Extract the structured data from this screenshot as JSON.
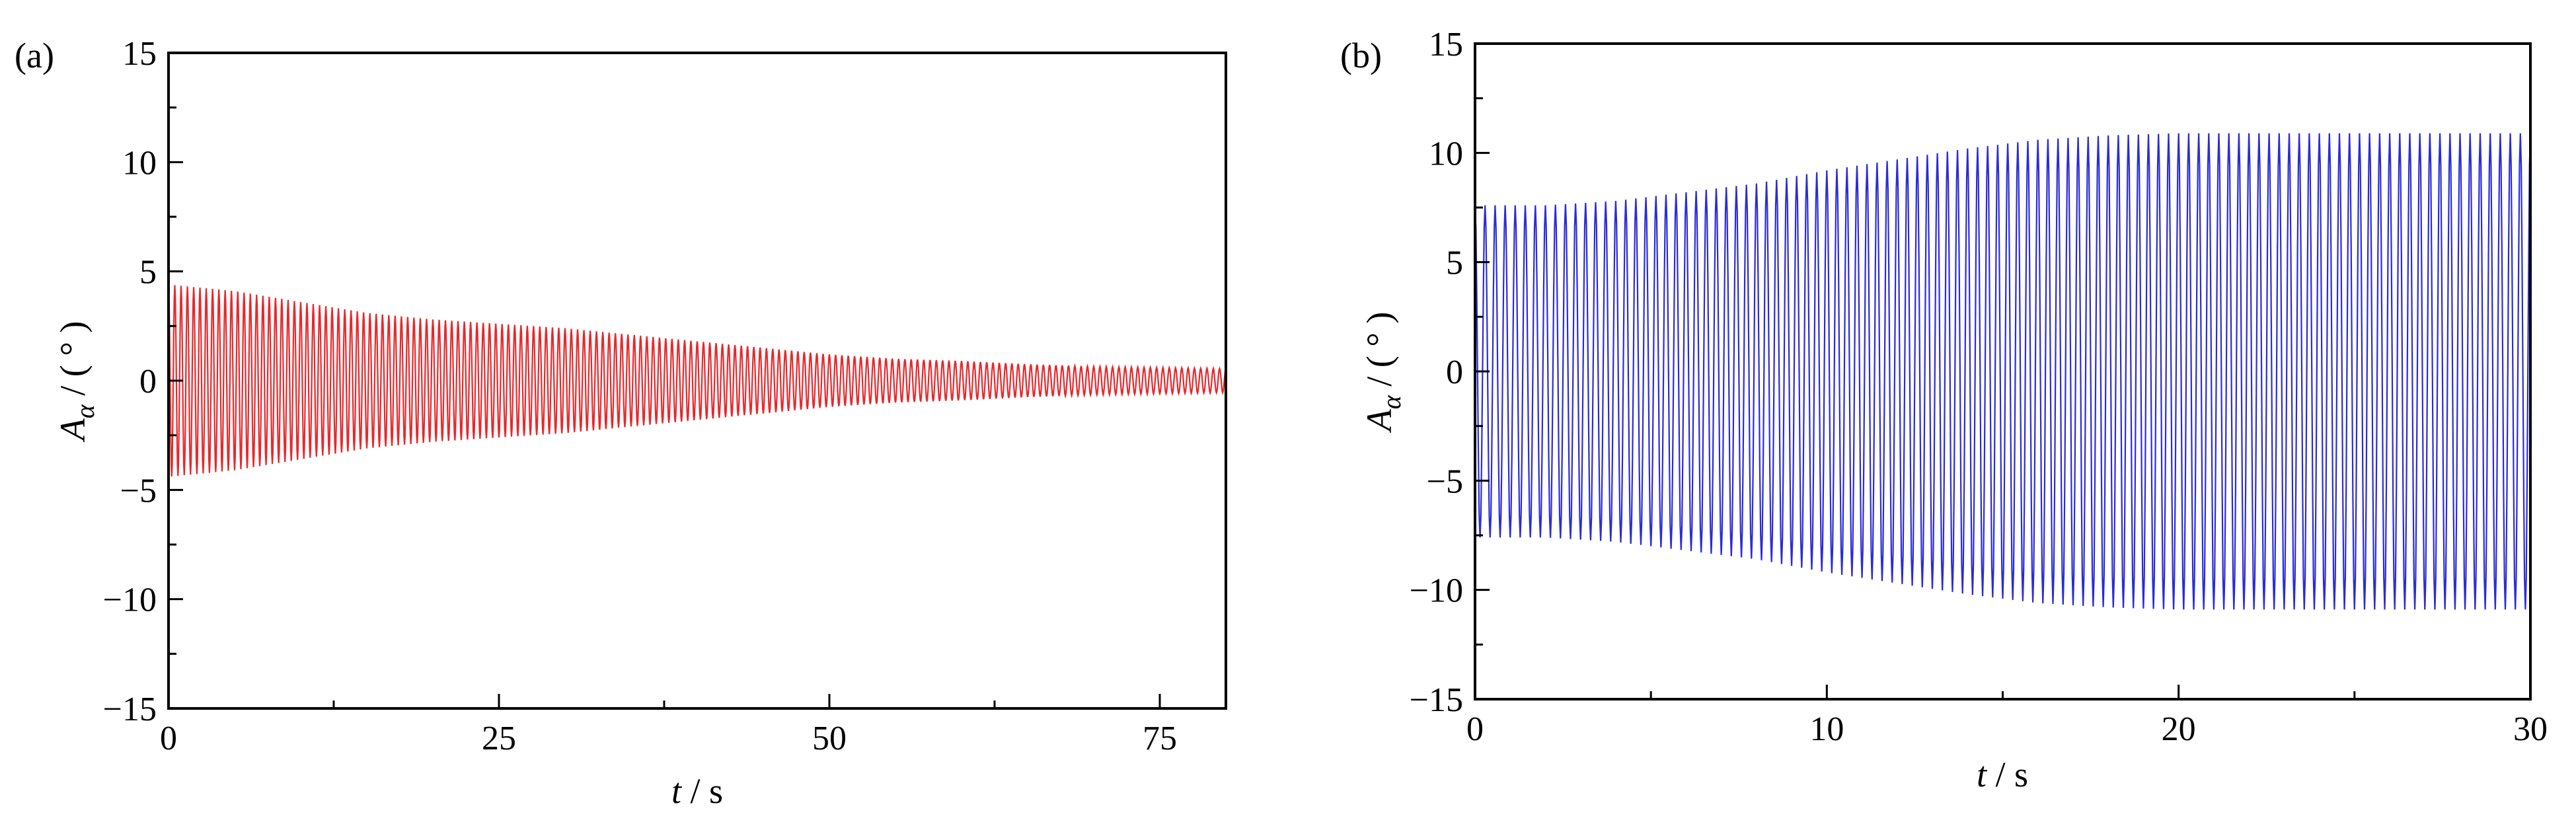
{
  "chart_data": [
    {
      "panel_label": "(a)",
      "type": "line",
      "color": "#e8282c",
      "xlabel": {
        "var": "t",
        "unit": "s"
      },
      "ylabel": {
        "var": "A",
        "sub": "α",
        "unit": "( ° )"
      },
      "xlim": [
        0,
        80
      ],
      "ylim": [
        -15,
        15
      ],
      "xticks": [
        0,
        25,
        50,
        75
      ],
      "yticks": [
        -15,
        -10,
        -5,
        0,
        5,
        10,
        15
      ],
      "xtick_labels": [
        "0",
        "25",
        "50",
        "75"
      ],
      "ytick_labels": [
        "−15",
        "−10",
        "−5",
        "0",
        "5",
        "10",
        "15"
      ],
      "series": [
        {
          "kind": "damped-oscillation",
          "frequency_hz": 2.1,
          "amplitude_envelope": {
            "t": [
              0,
              5,
              10,
              15,
              20,
              25,
              30,
              35,
              40,
              45,
              50,
              55,
              60,
              65,
              70,
              75,
              80
            ],
            "amp": [
              4.4,
              4.1,
              3.6,
              3.1,
              2.8,
              2.6,
              2.4,
              2.1,
              1.8,
              1.5,
              1.2,
              1.0,
              0.9,
              0.75,
              0.65,
              0.6,
              0.55
            ]
          }
        }
      ],
      "grid": false
    },
    {
      "panel_label": "(b)",
      "type": "line",
      "color": "#2b2bd9",
      "xlabel": {
        "var": "t",
        "unit": "s"
      },
      "ylabel": {
        "var": "A",
        "sub": "α",
        "unit": "( ° )"
      },
      "xlim": [
        0,
        30
      ],
      "ylim": [
        -15,
        15
      ],
      "xticks": [
        0,
        10,
        20,
        30
      ],
      "yticks": [
        -15,
        -10,
        -5,
        0,
        5,
        10,
        15
      ],
      "xtick_labels": [
        "0",
        "10",
        "20",
        "30"
      ],
      "ytick_labels": [
        "−15",
        "−10",
        "−5",
        "0",
        "5",
        "10",
        "15"
      ],
      "series": [
        {
          "kind": "growing-oscillation",
          "frequency_hz": 3.5,
          "amplitude_envelope": {
            "t": [
              0,
              2,
              4,
              6,
              8,
              10,
              12,
              14,
              16,
              18,
              20,
              22,
              24,
              26,
              28,
              30
            ],
            "amp": [
              7.6,
              7.6,
              7.8,
              8.2,
              8.6,
              9.2,
              9.7,
              10.2,
              10.6,
              10.8,
              10.9,
              10.9,
              10.9,
              10.9,
              10.9,
              10.9
            ]
          }
        }
      ],
      "grid": false
    }
  ]
}
